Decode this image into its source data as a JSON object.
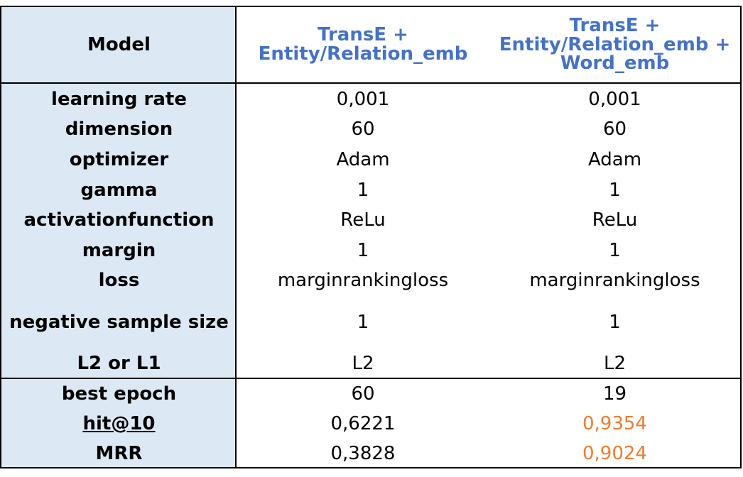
{
  "header": {
    "label": "Model",
    "col1": "TransE + Entity/Relation_emb",
    "col2": "TransE + Entity/Relation_emb + Word_emb"
  },
  "params": [
    {
      "label": "learning rate",
      "col1": "0,001",
      "col2": "0,001"
    },
    {
      "label": "dimension",
      "col1": "60",
      "col2": "60"
    },
    {
      "label": "optimizer",
      "col1": "Adam",
      "col2": "Adam"
    },
    {
      "label": "gamma",
      "col1": "1",
      "col2": "1"
    },
    {
      "label": "activationfunction",
      "col1": "ReLu",
      "col2": "ReLu"
    },
    {
      "label": "margin",
      "col1": "1",
      "col2": "1"
    },
    {
      "label": "loss",
      "col1": "marginrankingloss",
      "col2": "marginrankingloss"
    },
    {
      "label": "negative sample size",
      "col1": "1",
      "col2": "1"
    },
    {
      "label": "L2 or L1",
      "col1": "L2",
      "col2": "L2"
    }
  ],
  "results": [
    {
      "label": "best epoch",
      "col1": "60",
      "col2": "19"
    },
    {
      "label": "hit@10",
      "col1": "0,6221",
      "col2": "0,9354"
    },
    {
      "label": "MRR",
      "col1": "0,3828",
      "col2": "0,9024"
    }
  ],
  "colors": {
    "header_blue": "#4472c4",
    "highlight_orange": "#ed7d31",
    "label_background": "#dce9f5"
  }
}
